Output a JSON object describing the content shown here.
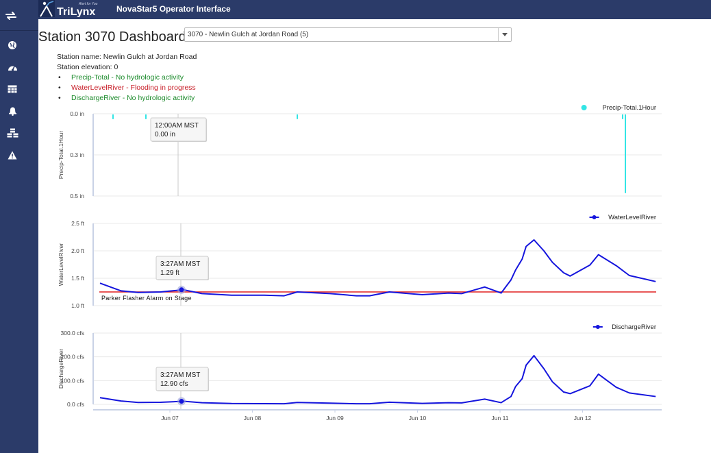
{
  "app": {
    "logo_text": "TriLynx",
    "logo_tagline": "Alert for You",
    "title": "NovaStar5 Operator Interface"
  },
  "sidebar": {
    "icons": [
      "swap-icon",
      "globe-icon",
      "dashboard-icon",
      "table-icon",
      "bell-icon",
      "cubes-icon",
      "warning-icon"
    ]
  },
  "page": {
    "title": "Station 3070 Dashboard"
  },
  "station_select": {
    "value": "3070 - Newlin Gulch at Jordan Road (5)"
  },
  "station_info": {
    "name": "Station name: Newlin Gulch at Jordan Road",
    "elevation": "Station elevation: 0",
    "statuses": [
      {
        "text": "Precip-Total - No hydrologic activity",
        "level": "ok"
      },
      {
        "text": "WaterLevelRiver - Flooding in progress",
        "level": "alarm"
      },
      {
        "text": "DischargeRiver - No hydrologic activity",
        "level": "ok"
      }
    ]
  },
  "colors": {
    "navy": "#2b3b69",
    "precip": "#33e5e5",
    "series": "#1515dd",
    "alarm_line": "#e02020",
    "ok_text": "#1a8a2a",
    "alarm_text": "#c8202a"
  },
  "chart_data": [
    {
      "type": "bar",
      "ylabel": "Precip-Total.1Hour",
      "legend": "Precip-Total.1Hour",
      "legend_position": "top-right",
      "ylim": [
        0.0,
        0.5
      ],
      "y_ticks": [
        "0.0 in",
        "0.3 in",
        "0.5 in"
      ],
      "inverted_y": true,
      "bars": [
        {
          "x": "Jun 06 08:00",
          "value": 0.02
        },
        {
          "x": "Jun 06 20:00",
          "value": 0.02
        },
        {
          "x": "Jun 08 16:00",
          "value": 0.02
        },
        {
          "x": "Jun 12 13:00",
          "value": 0.02
        },
        {
          "x": "Jun 12 14:00",
          "value": 0.47
        }
      ],
      "tooltip": {
        "time": "12:00AM MST",
        "value": "0.00 in"
      }
    },
    {
      "type": "line",
      "ylabel": "WaterLevelRiver",
      "legend": "WaterLevelRiver",
      "legend_position": "top-right",
      "ylim": [
        1.0,
        2.5
      ],
      "y_ticks": [
        "2.5 ft",
        "2.0 ft",
        "1.5 ft",
        "1.0 ft"
      ],
      "threshold": {
        "value": 1.25,
        "label": "Parker Flasher Alarm on Stage"
      },
      "points": [
        [
          "Jun 06 00:00",
          1.41
        ],
        [
          "Jun 06 06:00",
          1.27
        ],
        [
          "Jun 06 12:00",
          1.25
        ],
        [
          "Jun 06 18:00",
          1.25
        ],
        [
          "Jun 07 03:27",
          1.29
        ],
        [
          "Jun 07 12:00",
          1.22
        ],
        [
          "Jun 08 00:00",
          1.19
        ],
        [
          "Jun 08 12:00",
          1.19
        ],
        [
          "Jun 08 18:00",
          1.18
        ],
        [
          "Jun 09 00:00",
          1.25
        ],
        [
          "Jun 09 12:00",
          1.22
        ],
        [
          "Jun 10 00:00",
          1.18
        ],
        [
          "Jun 10 12:00",
          1.25
        ],
        [
          "Jun 11 00:00",
          1.2
        ],
        [
          "Jun 11 12:00",
          1.23
        ],
        [
          "Jun 12 00:00",
          1.22
        ],
        [
          "Jun 11 12:00",
          1.23
        ],
        [
          "Jun 12 00:00",
          1.22
        ]
      ],
      "tooltip": {
        "time": "3:27AM MST",
        "value": "1.29 ft"
      }
    },
    {
      "type": "line",
      "ylabel": "DischargeRiver",
      "legend": "DischargeRiver",
      "legend_position": "top-right",
      "ylim": [
        0,
        300
      ],
      "y_ticks": [
        "300.0 cfs",
        "200.0 cfs",
        "100.0 cfs",
        "0.0 cfs"
      ],
      "x_ticks": [
        "Jun 07",
        "Jun 08",
        "Jun 09",
        "Jun 10",
        "Jun 11",
        "Jun 12"
      ],
      "tooltip": {
        "time": "3:27AM MST",
        "value": "12.90 cfs"
      }
    }
  ],
  "level_series": [
    [
      0.0,
      1.41
    ],
    [
      0.32,
      1.27
    ],
    [
      0.58,
      1.24
    ],
    [
      0.92,
      1.25
    ],
    [
      1.27,
      1.29
    ],
    [
      1.55,
      1.22
    ],
    [
      2.0,
      1.19
    ],
    [
      2.5,
      1.19
    ],
    [
      2.8,
      1.18
    ],
    [
      3.0,
      1.25
    ],
    [
      3.5,
      1.22
    ],
    [
      3.9,
      1.18
    ],
    [
      4.1,
      1.18
    ],
    [
      4.4,
      1.25
    ],
    [
      4.9,
      1.2
    ],
    [
      5.3,
      1.23
    ],
    [
      5.5,
      1.22
    ],
    [
      5.85,
      1.34
    ],
    [
      6.1,
      1.23
    ],
    [
      6.25,
      1.47
    ],
    [
      6.32,
      1.65
    ],
    [
      6.42,
      1.85
    ],
    [
      6.48,
      2.08
    ],
    [
      6.6,
      2.2
    ],
    [
      6.75,
      2.0
    ],
    [
      6.88,
      1.79
    ],
    [
      7.05,
      1.6
    ],
    [
      7.15,
      1.54
    ],
    [
      7.45,
      1.74
    ],
    [
      7.58,
      1.93
    ],
    [
      7.85,
      1.73
    ],
    [
      8.05,
      1.55
    ],
    [
      8.45,
      1.44
    ]
  ],
  "discharge_series": [
    [
      0.0,
      28.0
    ],
    [
      0.32,
      14.0
    ],
    [
      0.58,
      8.0
    ],
    [
      0.92,
      8.5
    ],
    [
      1.27,
      12.9
    ],
    [
      1.55,
      7.0
    ],
    [
      2.0,
      3.5
    ],
    [
      2.5,
      3.0
    ],
    [
      2.8,
      2.5
    ],
    [
      3.0,
      8.0
    ],
    [
      3.5,
      5.0
    ],
    [
      3.9,
      2.5
    ],
    [
      4.1,
      2.5
    ],
    [
      4.4,
      9.0
    ],
    [
      4.9,
      4.0
    ],
    [
      5.3,
      7.0
    ],
    [
      5.5,
      6.0
    ],
    [
      5.85,
      22.0
    ],
    [
      6.1,
      7.0
    ],
    [
      6.25,
      33.0
    ],
    [
      6.32,
      75.0
    ],
    [
      6.42,
      108.0
    ],
    [
      6.48,
      165.0
    ],
    [
      6.6,
      205.0
    ],
    [
      6.75,
      150.0
    ],
    [
      6.88,
      95.0
    ],
    [
      7.05,
      52.0
    ],
    [
      7.15,
      45.0
    ],
    [
      7.45,
      78.0
    ],
    [
      7.58,
      127.0
    ],
    [
      7.85,
      72.0
    ],
    [
      8.05,
      48.0
    ],
    [
      8.45,
      33.0
    ]
  ]
}
